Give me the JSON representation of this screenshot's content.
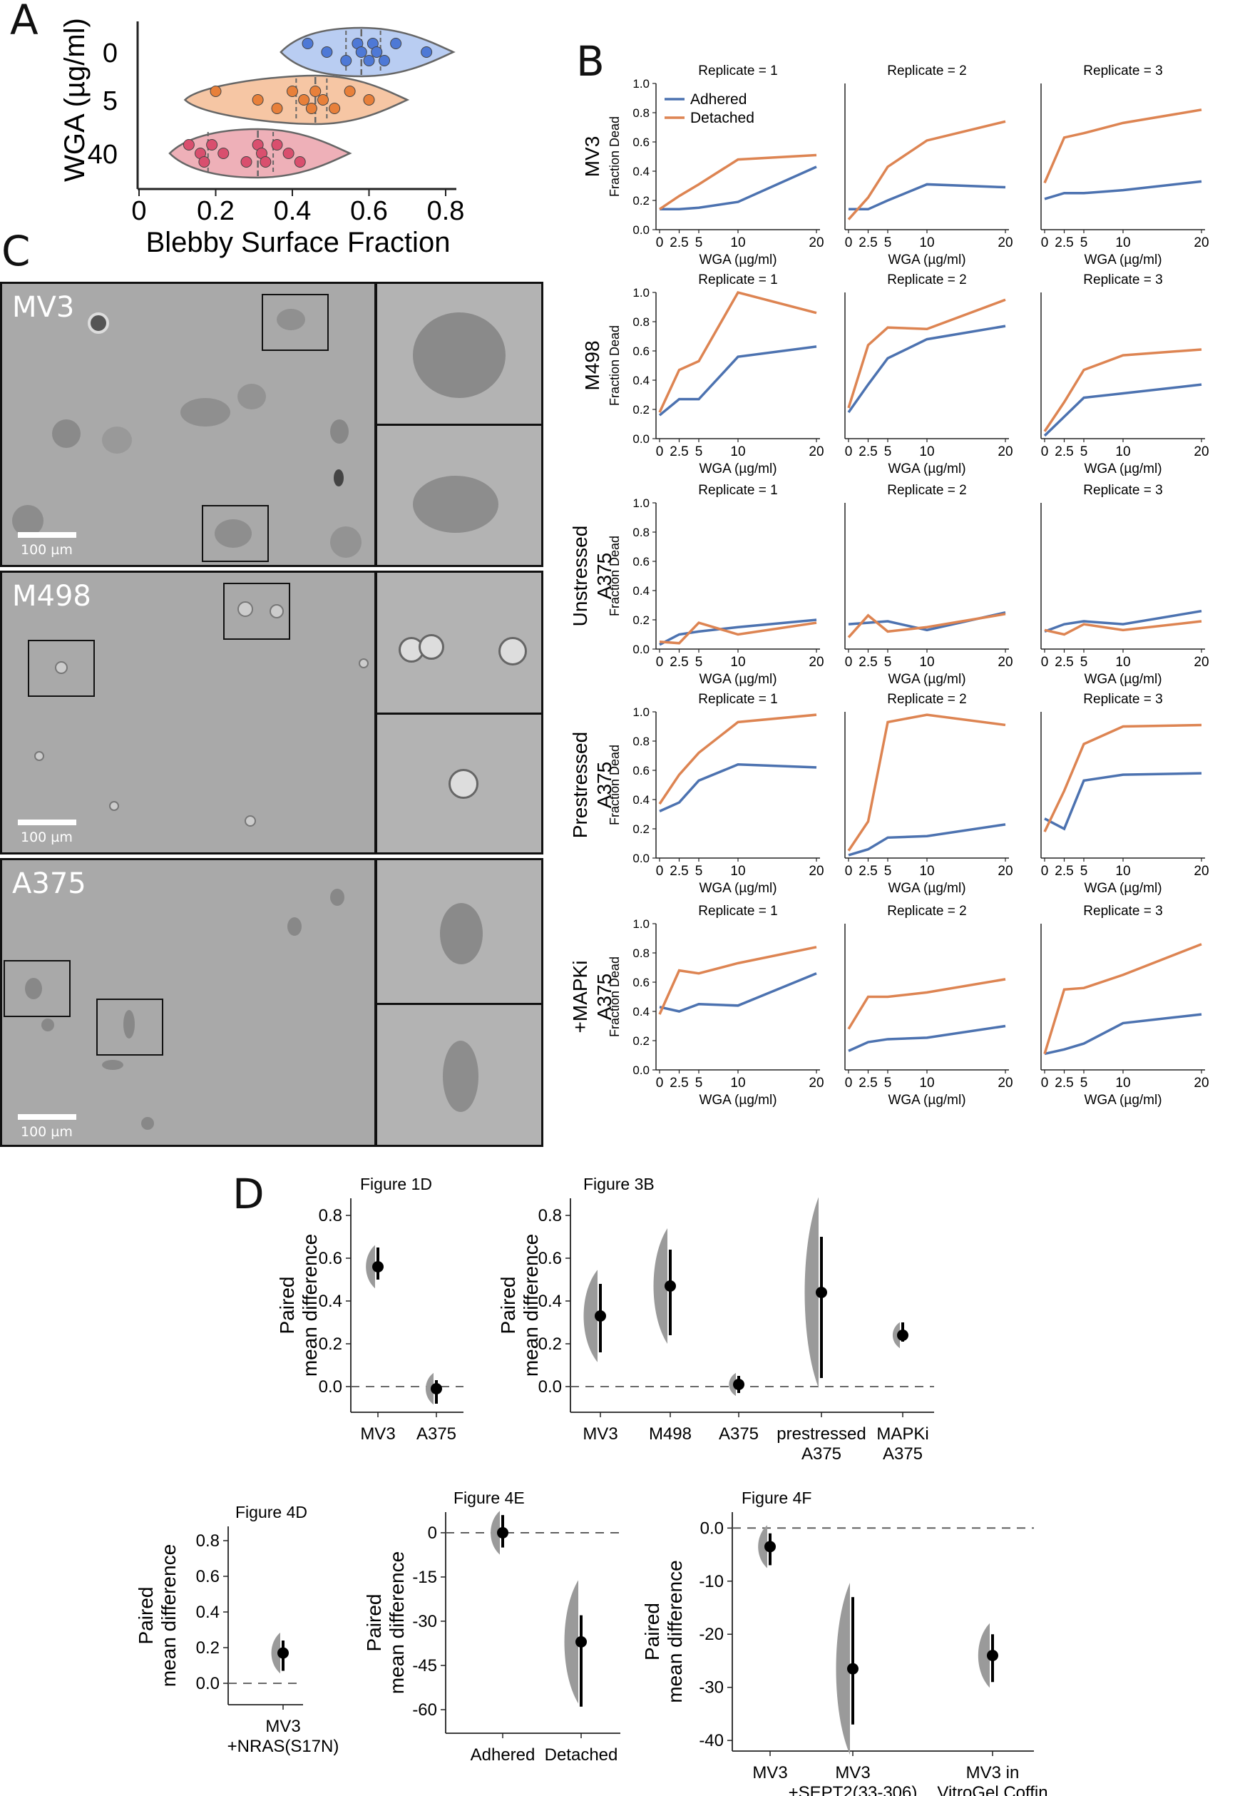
{
  "panels": {
    "A": "A",
    "B": "B",
    "C": "C",
    "D": "D"
  },
  "chart_data": [
    {
      "id": "A",
      "type": "violin",
      "xlabel": "Blebby Surface Fraction",
      "ylabel": "WGA (µg/ml)",
      "xticks": [
        "0",
        "0.2",
        "0.4",
        "0.6",
        "0.8"
      ],
      "xlim": [
        0,
        0.8
      ],
      "colors": {
        "0": "#4e79d6",
        "5": "#e8803a",
        "40": "#d94f6e"
      },
      "groups": [
        {
          "label": "0",
          "points": [
            0.44,
            0.49,
            0.54,
            0.57,
            0.58,
            0.6,
            0.61,
            0.62,
            0.64,
            0.67,
            0.75
          ],
          "median": 0.58,
          "q1": 0.54,
          "q3": 0.63,
          "range": [
            0.37,
            0.82
          ]
        },
        {
          "label": "5",
          "points": [
            0.2,
            0.31,
            0.36,
            0.4,
            0.43,
            0.45,
            0.46,
            0.48,
            0.51,
            0.55,
            0.6
          ],
          "median": 0.46,
          "q1": 0.41,
          "q3": 0.49,
          "range": [
            0.12,
            0.7
          ]
        },
        {
          "label": "40",
          "points": [
            0.13,
            0.16,
            0.17,
            0.19,
            0.22,
            0.28,
            0.31,
            0.32,
            0.33,
            0.36,
            0.39,
            0.42
          ],
          "median": 0.31,
          "q1": 0.18,
          "q3": 0.35,
          "range": [
            0.08,
            0.55
          ]
        }
      ]
    }
  ],
  "panelB": {
    "type": "line",
    "legend": [
      "Adhered",
      "Detached"
    ],
    "colors": {
      "Adhered": "#4c72b0",
      "Detached": "#dd8452"
    },
    "x": [
      0,
      2.5,
      5,
      10,
      20
    ],
    "xticks": [
      "0",
      "2.5",
      "5",
      "10",
      "20"
    ],
    "yticks": [
      "0.0",
      "0.2",
      "0.4",
      "0.6",
      "0.8",
      "1.0"
    ],
    "xlabel": "WGA (µg/ml)",
    "ylabel": "Fraction Dead",
    "replicate_titles": [
      "Replicate = 1",
      "Replicate = 2",
      "Replicate = 3"
    ],
    "rows": [
      {
        "label": [
          "MV3"
        ],
        "reps": [
          {
            "Adhered": [
              0.14,
              0.14,
              0.15,
              0.19,
              0.43
            ],
            "Detached": [
              0.14,
              0.23,
              0.31,
              0.48,
              0.51
            ]
          },
          {
            "Adhered": [
              0.14,
              0.14,
              0.2,
              0.31,
              0.29
            ],
            "Detached": [
              0.07,
              0.22,
              0.43,
              0.61,
              0.74
            ]
          },
          {
            "Adhered": [
              0.21,
              0.25,
              0.25,
              0.27,
              0.33
            ],
            "Detached": [
              0.32,
              0.63,
              0.66,
              0.73,
              0.82
            ]
          }
        ]
      },
      {
        "label": [
          "M498"
        ],
        "reps": [
          {
            "Adhered": [
              0.16,
              0.27,
              0.27,
              0.56,
              0.63
            ],
            "Detached": [
              0.18,
              0.47,
              0.53,
              1.0,
              0.86
            ]
          },
          {
            "Adhered": [
              0.18,
              0.37,
              0.55,
              0.68,
              0.77
            ],
            "Detached": [
              0.21,
              0.64,
              0.76,
              0.75,
              0.95
            ]
          },
          {
            "Adhered": [
              0.02,
              0.15,
              0.28,
              0.31,
              0.37
            ],
            "Detached": [
              0.05,
              0.25,
              0.47,
              0.57,
              0.61
            ]
          }
        ]
      },
      {
        "label": [
          "Unstressed",
          "A375"
        ],
        "reps": [
          {
            "Adhered": [
              0.03,
              0.1,
              0.12,
              0.15,
              0.2
            ],
            "Detached": [
              0.05,
              0.04,
              0.18,
              0.1,
              0.18
            ]
          },
          {
            "Adhered": [
              0.17,
              0.18,
              0.19,
              0.13,
              0.25
            ],
            "Detached": [
              0.08,
              0.23,
              0.12,
              0.15,
              0.24
            ]
          },
          {
            "Adhered": [
              0.12,
              0.17,
              0.19,
              0.17,
              0.26
            ],
            "Detached": [
              0.13,
              0.1,
              0.17,
              0.13,
              0.19
            ]
          }
        ]
      },
      {
        "label": [
          "Prestressed",
          "A375"
        ],
        "reps": [
          {
            "Adhered": [
              0.32,
              0.38,
              0.53,
              0.64,
              0.62
            ],
            "Detached": [
              0.37,
              0.57,
              0.72,
              0.93,
              0.98
            ]
          },
          {
            "Adhered": [
              0.02,
              0.06,
              0.14,
              0.15,
              0.23
            ],
            "Detached": [
              0.05,
              0.25,
              0.93,
              0.98,
              0.91
            ]
          },
          {
            "Adhered": [
              0.27,
              0.2,
              0.53,
              0.57,
              0.58
            ],
            "Detached": [
              0.18,
              0.46,
              0.78,
              0.9,
              0.91
            ]
          }
        ]
      },
      {
        "label": [
          "+MAPKi",
          "A375"
        ],
        "reps": [
          {
            "Adhered": [
              0.43,
              0.4,
              0.45,
              0.44,
              0.66
            ],
            "Detached": [
              0.38,
              0.68,
              0.66,
              0.73,
              0.84
            ]
          },
          {
            "Adhered": [
              0.13,
              0.19,
              0.21,
              0.22,
              0.3
            ],
            "Detached": [
              0.28,
              0.5,
              0.5,
              0.53,
              0.62
            ]
          },
          {
            "Adhered": [
              0.11,
              0.14,
              0.18,
              0.32,
              0.38
            ],
            "Detached": [
              0.11,
              0.55,
              0.56,
              0.65,
              0.86
            ]
          }
        ]
      }
    ]
  },
  "panelC": {
    "rows": [
      {
        "label": "MV3",
        "scalebar": "100 µm"
      },
      {
        "label": "M498",
        "scalebar": "100 µm"
      },
      {
        "label": "A375",
        "scalebar": "100 µm"
      }
    ]
  },
  "panelD": {
    "ylabel": [
      "Paired",
      "mean difference"
    ],
    "plots": [
      {
        "title": "Figure 1D",
        "yticks": [
          "0.0",
          "0.2",
          "0.4",
          "0.6",
          "0.8"
        ],
        "ylim": [
          -0.12,
          0.88
        ],
        "groups": [
          {
            "label": [
              "MV3"
            ],
            "mean": 0.56,
            "ci": [
              0.5,
              0.65
            ]
          },
          {
            "label": [
              "A375"
            ],
            "mean": -0.01,
            "ci": [
              -0.08,
              0.03
            ]
          }
        ]
      },
      {
        "title": "Figure 3B",
        "yticks": [
          "0.0",
          "0.2",
          "0.4",
          "0.6",
          "0.8"
        ],
        "ylim": [
          -0.12,
          0.88
        ],
        "groups": [
          {
            "label": [
              "MV3"
            ],
            "mean": 0.33,
            "ci": [
              0.16,
              0.48
            ]
          },
          {
            "label": [
              "M498"
            ],
            "mean": 0.47,
            "ci": [
              0.24,
              0.64
            ]
          },
          {
            "label": [
              "A375"
            ],
            "mean": 0.01,
            "ci": [
              -0.03,
              0.05
            ]
          },
          {
            "label": [
              "prestressed",
              "A375"
            ],
            "mean": 0.44,
            "ci": [
              0.04,
              0.7
            ]
          },
          {
            "label": [
              "MAPKi",
              "A375"
            ],
            "mean": 0.24,
            "ci": [
              0.21,
              0.3
            ]
          }
        ]
      },
      {
        "title": "Figure 4D",
        "yticks": [
          "0.0",
          "0.2",
          "0.4",
          "0.6",
          "0.8"
        ],
        "ylim": [
          -0.12,
          0.88
        ],
        "groups": [
          {
            "label": [
              "MV3",
              "+NRAS(S17N)"
            ],
            "mean": 0.17,
            "ci": [
              0.07,
              0.24
            ]
          }
        ]
      },
      {
        "title": "Figure 4E",
        "yticks": [
          "0",
          "-15",
          "-30",
          "-45",
          "-60"
        ],
        "ylim": [
          -68,
          7
        ],
        "groups": [
          {
            "label": [
              "Adhered"
            ],
            "mean": 0,
            "ci": [
              -5,
              6
            ]
          },
          {
            "label": [
              "Detached"
            ],
            "mean": -37,
            "ci": [
              -59,
              -28
            ]
          }
        ]
      },
      {
        "title": "Figure 4F",
        "yticks": [
          "0.0",
          "-10",
          "-20",
          "-30",
          "-40"
        ],
        "ylim": [
          -42,
          3
        ],
        "groups": [
          {
            "label": [
              "MV3"
            ],
            "mean": -3.5,
            "ci": [
              -7,
              -1
            ]
          },
          {
            "label": [
              "MV3",
              "+SEPT2(33-306)"
            ],
            "mean": -26.5,
            "ci": [
              -37,
              -13
            ]
          },
          {
            "label": [
              "MV3 in",
              "VitroGel Coffin"
            ],
            "mean": -24,
            "ci": [
              -29,
              -20
            ]
          }
        ]
      }
    ]
  }
}
